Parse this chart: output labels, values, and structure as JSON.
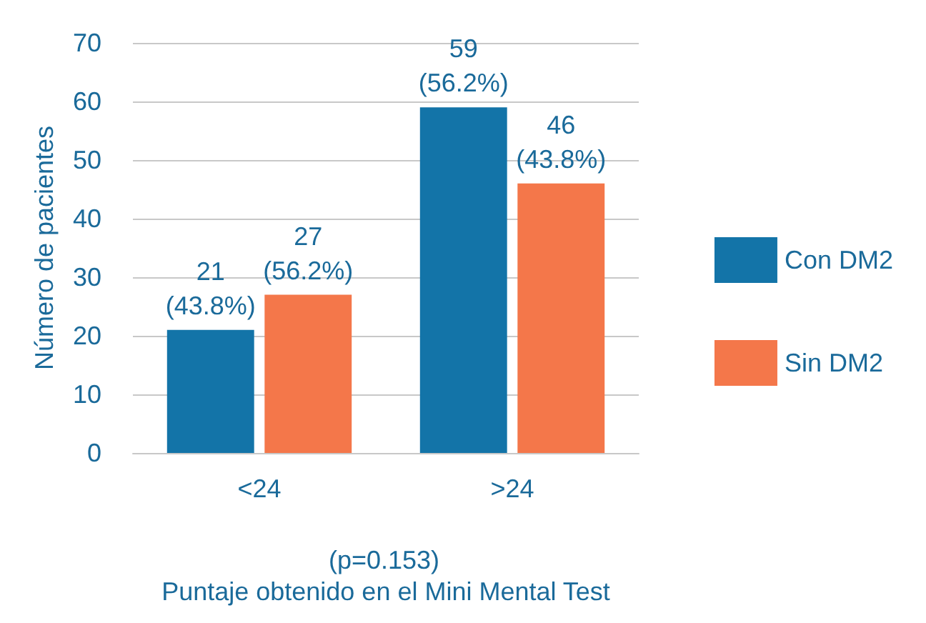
{
  "chart_data": {
    "type": "bar",
    "ylabel": "Número de pacientes",
    "xlabel": "Puntaje obtenido en el Mini Mental Test",
    "annotations": [
      "(p=0.153)"
    ],
    "categories": [
      "<24",
      ">24"
    ],
    "series": [
      {
        "name": "Con DM2",
        "color": "#1374a8",
        "values": [
          21,
          59
        ],
        "value_labels": [
          "21\n(43.8%)",
          "59\n(56.2%)"
        ]
      },
      {
        "name": "Sin DM2",
        "color": "#f4774a",
        "values": [
          27,
          46
        ],
        "value_labels": [
          "27\n(56.2%)",
          "46\n(43.8%)"
        ]
      }
    ],
    "ylim": [
      0,
      70
    ],
    "yticks": [
      0,
      10,
      20,
      30,
      40,
      50,
      60,
      70
    ],
    "grid": "y",
    "legend": "right"
  }
}
